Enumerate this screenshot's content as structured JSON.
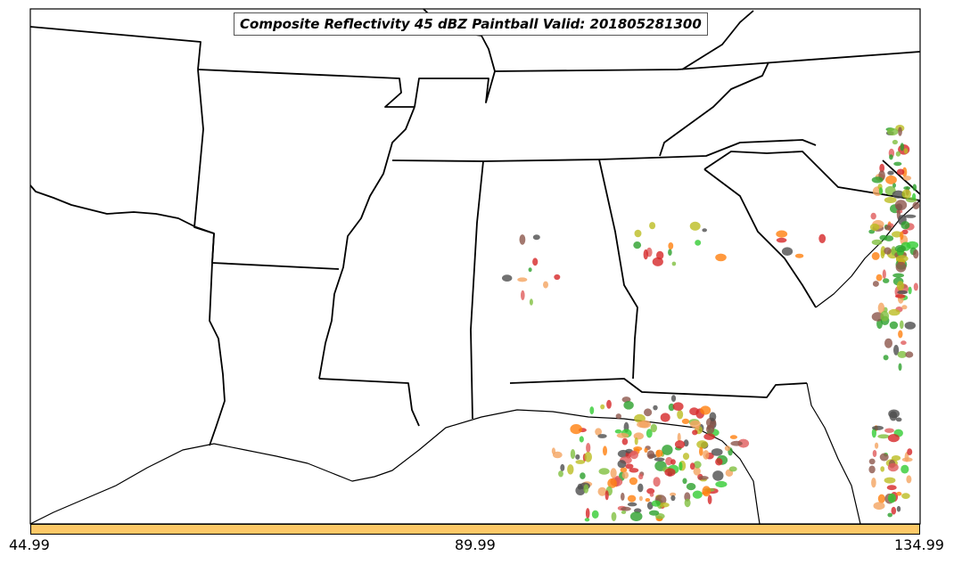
{
  "title": "Composite Reflectivity 45 dBZ Paintball Valid: 201805281300",
  "colorbar": {
    "color": "#fdc867",
    "ticks": [
      "44.99",
      "89.99",
      "134.99"
    ]
  },
  "colors": {
    "land": "#ffffff",
    "borders": "#000000",
    "members": [
      "#d62728",
      "#2ca02c",
      "#ff7f0e",
      "#8c564b",
      "#4d4d4d",
      "#7fbf3f",
      "#e05b5b",
      "#bcbd22",
      "#33cc33",
      "#f4a460"
    ]
  }
}
